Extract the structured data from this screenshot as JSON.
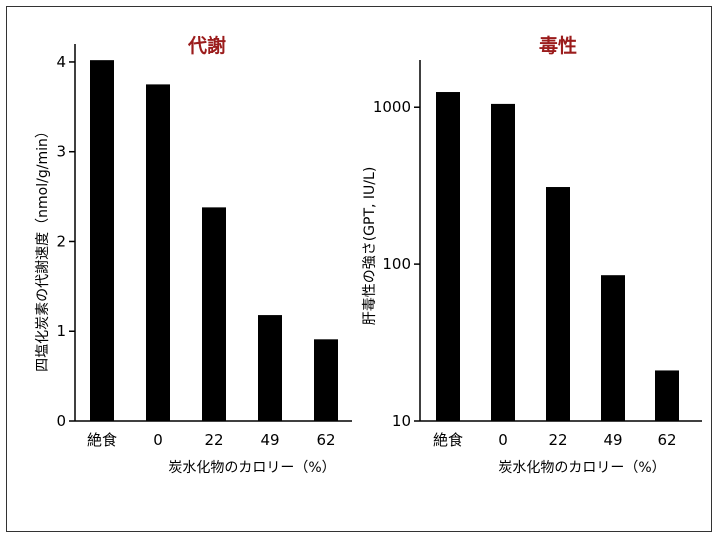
{
  "colors": {
    "title": "#9b1c1c",
    "bar": "#000000",
    "axis": "#000000"
  },
  "chart_data": [
    {
      "type": "bar",
      "title": "代謝",
      "categories": [
        "絶食",
        "0",
        "22",
        "49",
        "62"
      ],
      "values": [
        4.02,
        3.75,
        2.38,
        1.18,
        0.91
      ],
      "xlabel": "炭水化物のカロリー（%）",
      "ylabel": "四塩化炭素の代謝速度（nmol/g/min）",
      "ylim": [
        0,
        4.2
      ],
      "yticks": [
        0,
        1,
        2,
        3,
        4
      ],
      "yscale": "linear",
      "grid": false
    },
    {
      "type": "bar",
      "title": "毒性",
      "categories": [
        "絶食",
        "0",
        "22",
        "49",
        "62"
      ],
      "values": [
        1250,
        1050,
        310,
        85,
        21
      ],
      "xlabel": "炭水化物のカロリー（%）",
      "ylabel": "肝毒性の強さ(GPT, IU/L)",
      "ylim": [
        10,
        2000
      ],
      "yticks": [
        10,
        100,
        1000
      ],
      "yscale": "log",
      "grid": false
    }
  ]
}
